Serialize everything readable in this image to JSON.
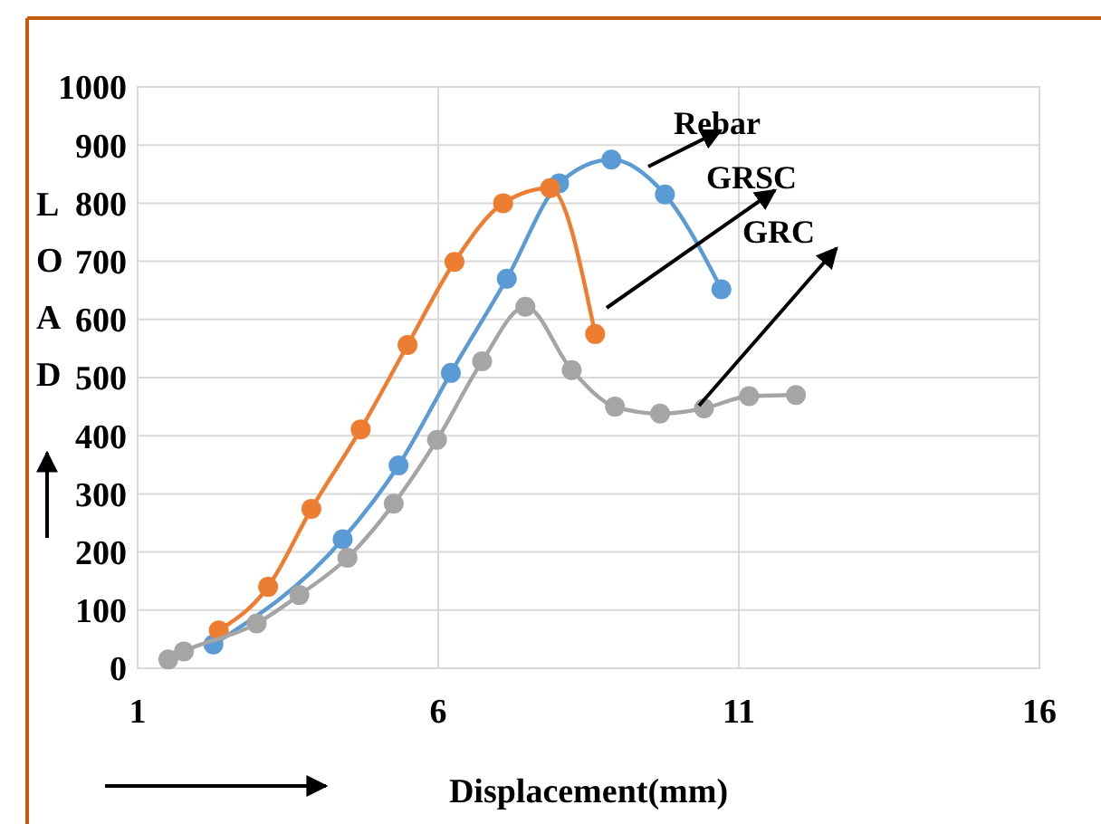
{
  "chart_data": {
    "type": "line",
    "xlabel": "Displacement(mm)",
    "ylabel": "LOAD",
    "xlim": [
      1,
      16
    ],
    "xticks": [
      1,
      6,
      11,
      16
    ],
    "ylim": [
      0,
      1000
    ],
    "yticks": [
      0,
      100,
      200,
      300,
      400,
      500,
      600,
      700,
      800,
      900,
      1000
    ],
    "grid": true,
    "marker": "circle",
    "series": [
      {
        "name": "Rebar",
        "color": "#5b9bd5",
        "x": [
          2.26,
          3.66,
          4.41,
          5.34,
          6.21,
          7.14,
          8.01,
          8.88,
          9.77,
          10.71
        ],
        "values": [
          41,
          null,
          222,
          349,
          508,
          670,
          834,
          875,
          815,
          652
        ]
      },
      {
        "name": "GRSC",
        "color": "#ed7d31",
        "x": [
          2.35,
          3.17,
          3.89,
          4.71,
          5.49,
          6.27,
          7.08,
          7.86,
          8.61
        ],
        "values": [
          65,
          140,
          274,
          411,
          556,
          699,
          800,
          826,
          575
        ]
      },
      {
        "name": "GRC",
        "color": "#a5a5a5",
        "x": [
          1.51,
          1.77,
          2.98,
          3.69,
          4.49,
          5.26,
          5.98,
          6.73,
          7.45,
          8.22,
          8.94,
          9.69,
          10.42,
          11.17,
          11.95
        ],
        "values": [
          15,
          29,
          77,
          126,
          190,
          283,
          393,
          528,
          622,
          513,
          450,
          438,
          447,
          468,
          470
        ]
      }
    ]
  }
}
